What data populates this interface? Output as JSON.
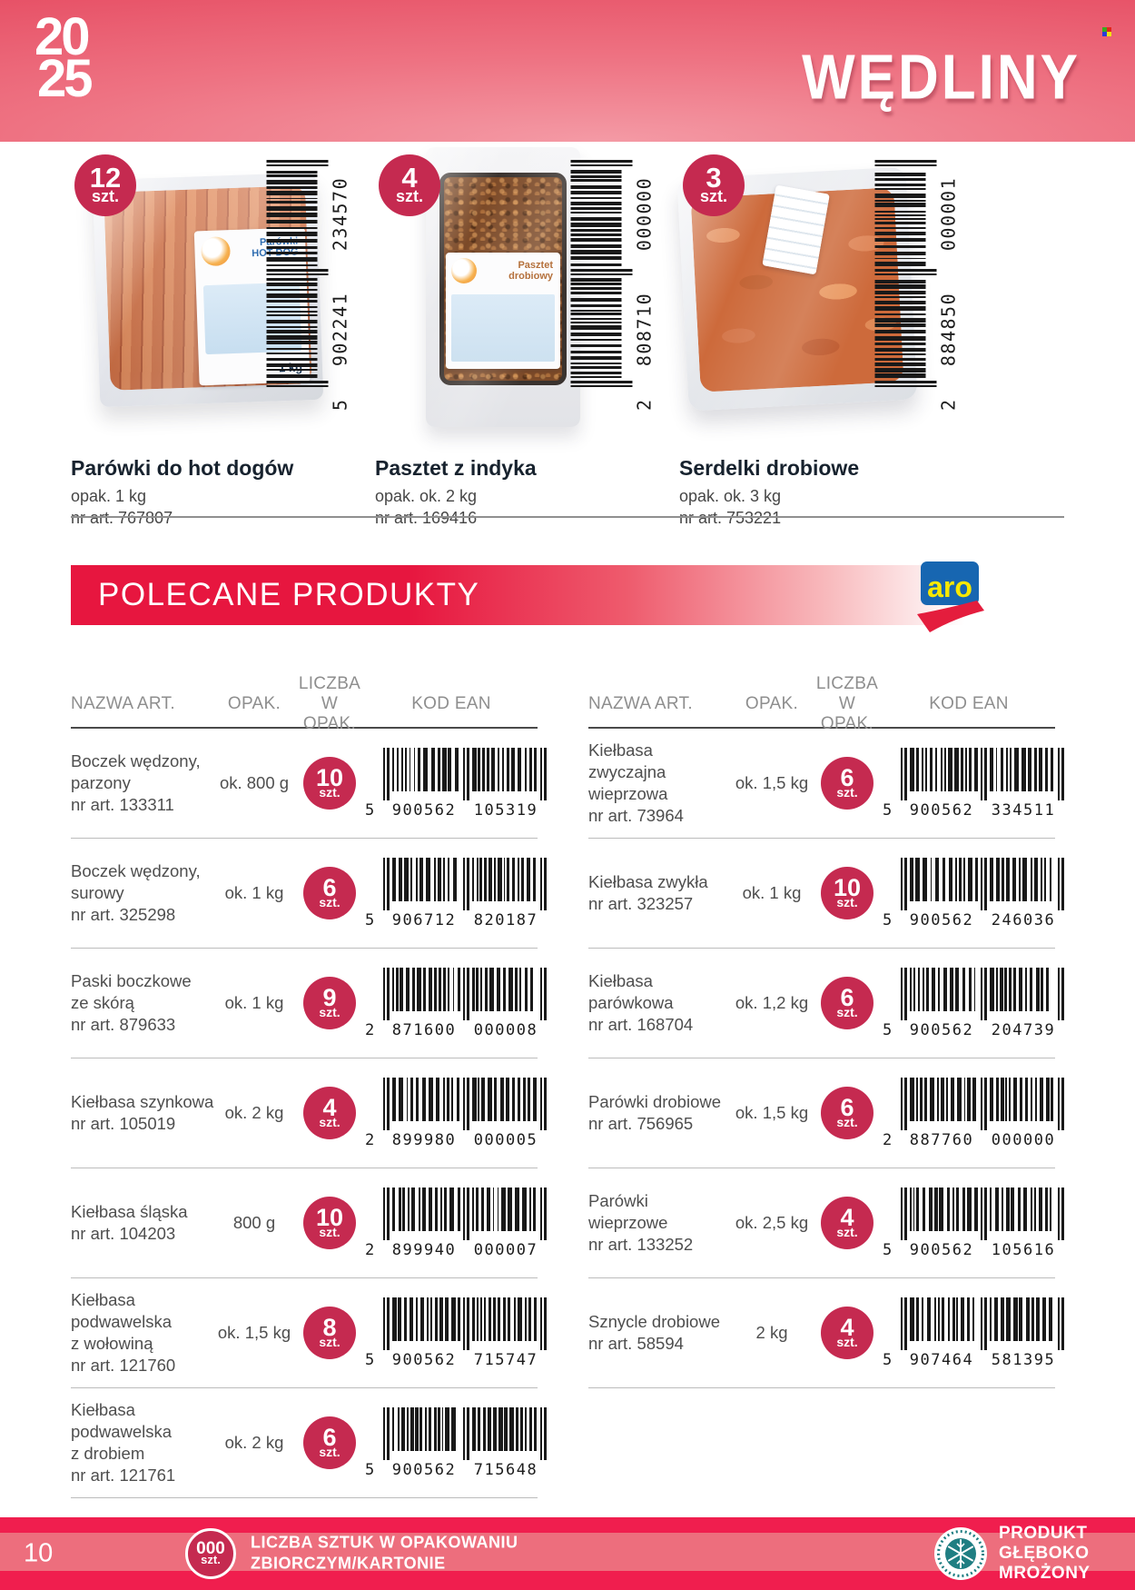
{
  "header": {
    "year_top": "20",
    "year_bottom": "25",
    "category_title": "WĘDLINY"
  },
  "featured_products": [
    {
      "qty": "12",
      "qty_unit": "szt.",
      "name": "Parówki do hot dogów",
      "pack": "opak. 1 kg",
      "art": "nr art. 767807",
      "ean": "5902241234570",
      "label_line1": "Parówki",
      "label_line2": "HOT-DOG",
      "label_weight": "1 kg"
    },
    {
      "qty": "4",
      "qty_unit": "szt.",
      "name": "Pasztet z indyka",
      "pack": "opak. ok. 2 kg",
      "art": "nr art. 169416",
      "ean": "2808710000000",
      "label_line1": "Pasztet",
      "label_line2": "drobiowy",
      "label_weight": ""
    },
    {
      "qty": "3",
      "qty_unit": "szt.",
      "name": "Serdelki drobiowe",
      "pack": "opak. ok. 3 kg",
      "art": "nr art. 753221",
      "ean": "2884850000001",
      "label_line1": "",
      "label_line2": "",
      "label_weight": ""
    }
  ],
  "banner": {
    "title": "POLECANE PRODUKTY",
    "brand": "aro"
  },
  "table": {
    "headers": {
      "name": "NAZWA ART.",
      "pack": "OPAK.",
      "qty": "LICZBA\nW OPAK.",
      "ean": "KOD EAN"
    },
    "left_rows": [
      {
        "name": "Boczek wędzony,\nparzony",
        "art": "nr art. 133311",
        "pack": "ok. 800 g",
        "qty": "10",
        "unit": "szt.",
        "ean": "5900562105319"
      },
      {
        "name": "Boczek wędzony,\nsurowy",
        "art": "nr art. 325298",
        "pack": "ok. 1 kg",
        "qty": "6",
        "unit": "szt.",
        "ean": "5906712820187"
      },
      {
        "name": "Paski boczkowe\nze skórą",
        "art": "nr art. 879633",
        "pack": "ok. 1 kg",
        "qty": "9",
        "unit": "szt.",
        "ean": "2871600000008"
      },
      {
        "name": "Kiełbasa szynkowa",
        "art": "nr art. 105019",
        "pack": "ok. 2 kg",
        "qty": "4",
        "unit": "szt.",
        "ean": "2899980000005"
      },
      {
        "name": "Kiełbasa śląska",
        "art": "nr art. 104203",
        "pack": "800 g",
        "qty": "10",
        "unit": "szt.",
        "ean": "2899940000007"
      },
      {
        "name": "Kiełbasa\npodwawelska\nz wołowiną",
        "art": "nr art. 121760",
        "pack": "ok. 1,5 kg",
        "qty": "8",
        "unit": "szt.",
        "ean": "5900562715747"
      },
      {
        "name": "Kiełbasa\npodwawelska\nz drobiem",
        "art": "nr art. 121761",
        "pack": "ok. 2 kg",
        "qty": "6",
        "unit": "szt.",
        "ean": "5900562715648"
      }
    ],
    "right_rows": [
      {
        "name": "Kiełbasa zwyczajna\nwieprzowa",
        "art": "nr art. 73964",
        "pack": "ok. 1,5 kg",
        "qty": "6",
        "unit": "szt.",
        "ean": "5900562334511"
      },
      {
        "name": "Kiełbasa zwykła",
        "art": "nr art. 323257",
        "pack": "ok. 1 kg",
        "qty": "10",
        "unit": "szt.",
        "ean": "5900562246036"
      },
      {
        "name": "Kiełbasa\nparówkowa",
        "art": "nr art. 168704",
        "pack": "ok. 1,2 kg",
        "qty": "6",
        "unit": "szt.",
        "ean": "5900562204739"
      },
      {
        "name": "Parówki drobiowe",
        "art": "nr art. 756965",
        "pack": "ok. 1,5 kg",
        "qty": "6",
        "unit": "szt.",
        "ean": "2887760000000"
      },
      {
        "name": "Parówki wieprzowe",
        "art": "nr art. 133252",
        "pack": "ok. 2,5 kg",
        "qty": "4",
        "unit": "szt.",
        "ean": "5900562105616"
      },
      {
        "name": "Sznycle drobiowe",
        "art": "nr art. 58594",
        "pack": "2 kg",
        "qty": "4",
        "unit": "szt.",
        "ean": "5907464581395"
      }
    ]
  },
  "footer": {
    "page_number": "10",
    "badge_qty": "000",
    "badge_unit": "szt.",
    "note": "LICZBA SZTUK W OPAKOWANIU\nZBIORCZYM/KARTONIE",
    "frozen_label": "PRODUKT\nGŁĘBOKO\nMROŻONY"
  },
  "colors": {
    "accent_crimson": "#c52a50",
    "header_pink": "#e75267",
    "banner_red": "#e7163f",
    "footer_pink": "#f01e4e",
    "brand_blue": "#1766b1",
    "brand_yellow": "#f8e800",
    "frozen_teal": "#1f7e82"
  }
}
